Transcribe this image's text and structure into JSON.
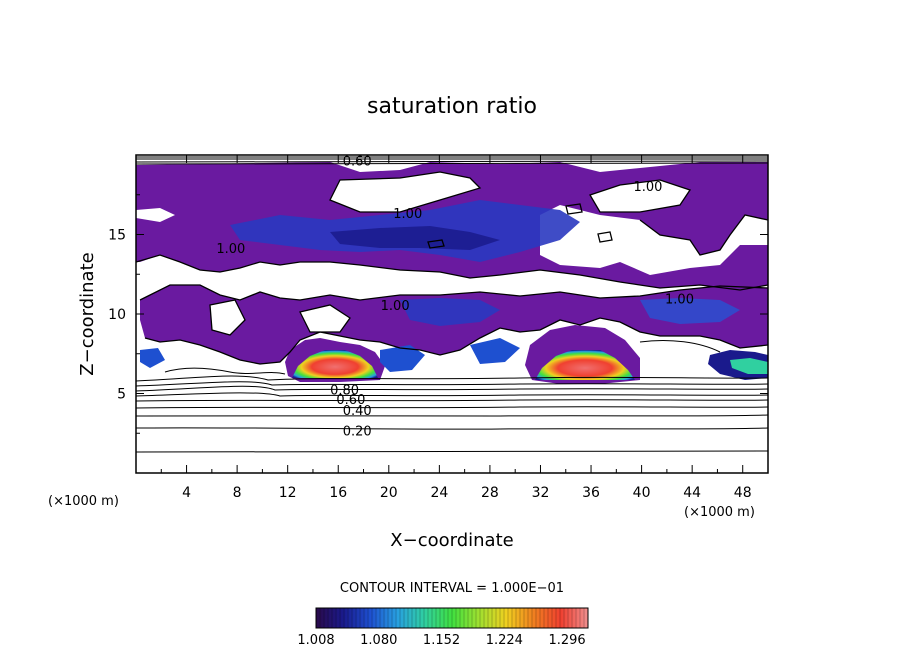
{
  "chart_data": {
    "type": "heatmap",
    "title": "saturation ratio",
    "xlabel": "X−coordinate",
    "ylabel": "Z−coordinate",
    "x_unit": "(×1000 m)",
    "y_unit": "(×1000 m)",
    "xlim": [
      0,
      50
    ],
    "ylim": [
      0,
      20
    ],
    "x_ticks": [
      4,
      8,
      12,
      16,
      20,
      24,
      28,
      32,
      36,
      40,
      44,
      48
    ],
    "x_tick_labels": [
      "4",
      "8",
      "12",
      "16",
      "20",
      "24",
      "28",
      "32",
      "36",
      "40",
      "44",
      "48"
    ],
    "y_ticks": [
      5,
      10,
      15
    ],
    "y_tick_labels": [
      "5",
      "10",
      "15"
    ],
    "contour_interval_text": "CONTOUR INTERVAL = 1.000E−01",
    "colorbar": {
      "min": 1.008,
      "max": 1.32,
      "ticks": [
        1.008,
        1.08,
        1.152,
        1.224,
        1.296
      ],
      "tick_labels": [
        "1.008",
        "1.080",
        "1.152",
        "1.224",
        "1.296"
      ],
      "colors": [
        "#2a0a4a",
        "#1a1a8c",
        "#1e50d0",
        "#28a0e0",
        "#30d0a0",
        "#40e040",
        "#a0e030",
        "#f0d020",
        "#f08020",
        "#f04030",
        "#f09090"
      ]
    },
    "contour_labels": [
      {
        "text": "0.20",
        "x": 17.5,
        "y": 2.6
      },
      {
        "text": "0.40",
        "x": 17.5,
        "y": 3.9
      },
      {
        "text": "0.60",
        "x": 17.0,
        "y": 4.6
      },
      {
        "text": "0.80",
        "x": 16.5,
        "y": 5.2
      },
      {
        "text": "1.00",
        "x": 21.5,
        "y": 16.3
      },
      {
        "text": "1.00",
        "x": 7.5,
        "y": 14.1
      },
      {
        "text": "1.00",
        "x": 20.5,
        "y": 10.5
      },
      {
        "text": "1.00",
        "x": 43.0,
        "y": 10.9
      },
      {
        "text": "1.00",
        "x": 40.5,
        "y": 18.0
      },
      {
        "text": "0.60",
        "x": 17.5,
        "y": 19.6
      }
    ],
    "regions": [
      {
        "name": "upper-humid-layer",
        "x": [
          0,
          50
        ],
        "y": [
          13,
          19.5
        ],
        "value_range": [
          1.008,
          1.06
        ]
      },
      {
        "name": "mid-humid-layer",
        "x": [
          0,
          50
        ],
        "y": [
          7.5,
          12.5
        ],
        "value_range": [
          1.008,
          1.07
        ]
      },
      {
        "name": "cloud-core-left",
        "x": [
          12.5,
          19
        ],
        "y": [
          6,
          7.7
        ],
        "value_range": [
          1.1,
          1.32
        ]
      },
      {
        "name": "cloud-core-right",
        "x": [
          31.5,
          39.5
        ],
        "y": [
          6,
          8
        ],
        "value_range": [
          1.1,
          1.32
        ]
      },
      {
        "name": "cloud-edge-right",
        "x": [
          45,
          50
        ],
        "y": [
          6.2,
          7.3
        ],
        "value_range": [
          1.05,
          1.2
        ]
      }
    ],
    "grid": false
  }
}
